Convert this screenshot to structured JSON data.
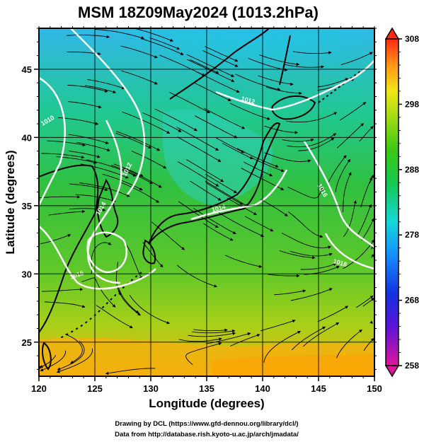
{
  "title": "MSM 18Z09May2024 (1013.2hPa)",
  "xlabel": "Longitude (degrees)",
  "ylabel": "Latitude  (degrees)",
  "x_ticks": [
    "120",
    "125",
    "130",
    "135",
    "140",
    "145",
    "150"
  ],
  "y_ticks": [
    "25",
    "30",
    "35",
    "40",
    "45"
  ],
  "colorbar_ticks": [
    "308",
    "298",
    "288",
    "278",
    "268",
    "258"
  ],
  "colorbar_range": [
    258,
    308
  ],
  "isobar_labels": [
    "1010",
    "1012",
    "1014",
    "1016",
    "1012",
    "1014",
    "1018",
    "1016"
  ],
  "credit_line1": "Drawing by DCL (https://www.gfd-dennou.org/library/dcl/)",
  "credit_line2": "Data from http://database.rish.kyoto-u.ac.jp/arch/jmadata/",
  "map": {
    "lon_range": [
      120,
      150
    ],
    "lat_range": [
      22.5,
      48
    ],
    "grid": true,
    "colors": {
      "warm": "#ffb000",
      "mid": "#33cc33",
      "cool": "#00c8d8",
      "cold": "#2a9cff",
      "coast": "#000000",
      "isobar": "#ffffff"
    }
  }
}
